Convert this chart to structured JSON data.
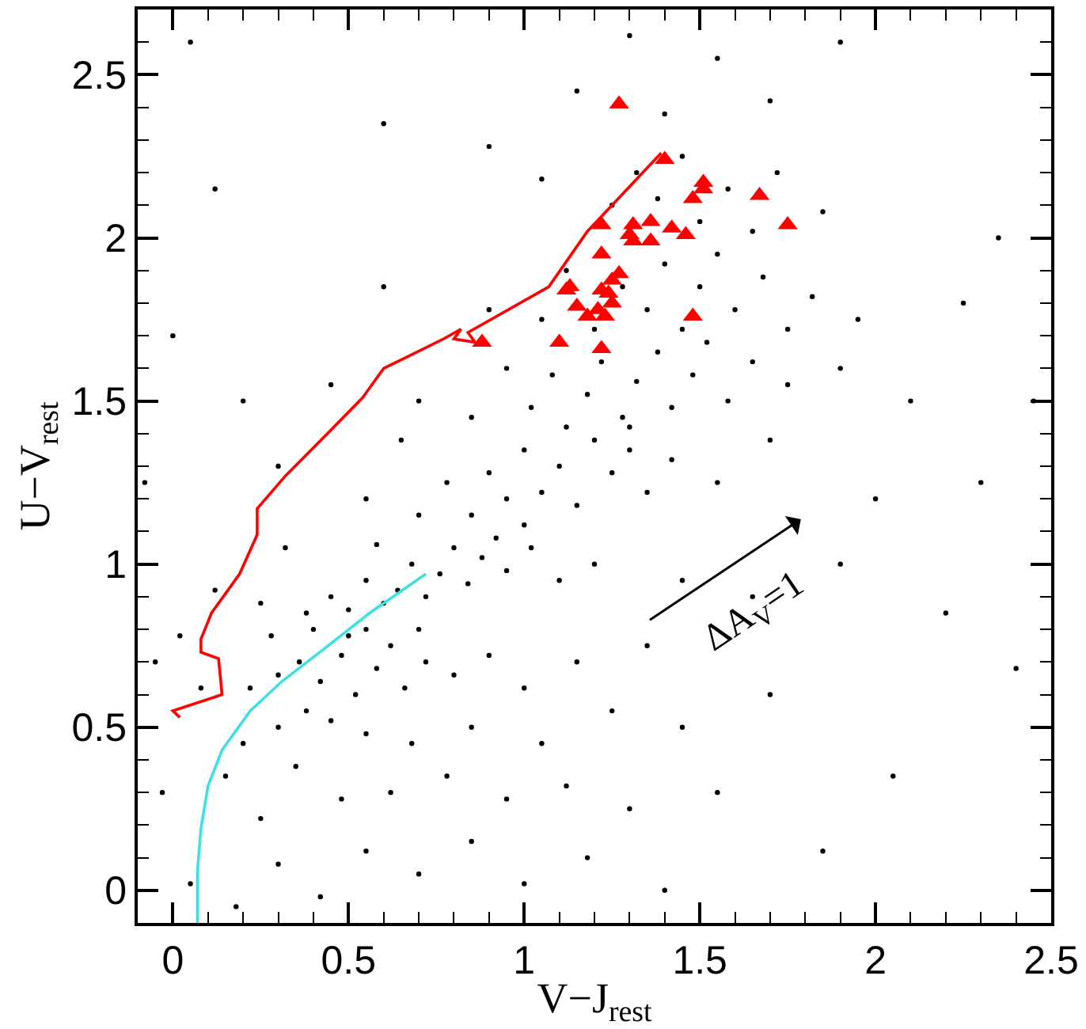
{
  "chart_data": {
    "type": "scatter",
    "xlabel": "V−J$_{rest}$",
    "ylabel": "U−V$_{rest}$",
    "annotations": [
      "ΔA$_{V}$=1"
    ],
    "xlim": [
      -0.1,
      2.5
    ],
    "ylim": [
      -0.1,
      2.7
    ],
    "xticks": [
      0,
      {
        "value": 0.1,
        "label": null
      },
      {
        "value": 0.2,
        "label": null
      },
      {
        "value": 0.3,
        "label": null
      },
      {
        "value": 0.4,
        "label": null
      },
      0.5,
      {
        "value": 0.6,
        "label": null
      },
      {
        "value": 0.7,
        "label": null
      },
      {
        "value": 0.8,
        "label": null
      },
      {
        "value": 0.9,
        "label": null
      },
      1,
      {
        "value": 1.1,
        "label": null
      },
      {
        "value": 1.2,
        "label": null
      },
      {
        "value": 1.3,
        "label": null
      },
      {
        "value": 1.4,
        "label": null
      },
      1.5,
      {
        "value": 1.6,
        "label": null
      },
      {
        "value": 1.7,
        "label": null
      },
      {
        "value": 1.8,
        "label": null
      },
      {
        "value": 1.9,
        "label": null
      },
      2,
      {
        "value": 2.1,
        "label": null
      },
      {
        "value": 2.2,
        "label": null
      },
      {
        "value": 2.3,
        "label": null
      },
      {
        "value": 2.4,
        "label": null
      },
      2.5
    ],
    "yticks": [
      0,
      {
        "value": 0.1,
        "label": null
      },
      {
        "value": 0.2,
        "label": null
      },
      {
        "value": 0.3,
        "label": null
      },
      {
        "value": 0.4,
        "label": null
      },
      0.5,
      {
        "value": 0.6,
        "label": null
      },
      {
        "value": 0.7,
        "label": null
      },
      {
        "value": 0.8,
        "label": null
      },
      {
        "value": 0.9,
        "label": null
      },
      1,
      {
        "value": 1.1,
        "label": null
      },
      {
        "value": 1.2,
        "label": null
      },
      {
        "value": 1.3,
        "label": null
      },
      {
        "value": 1.4,
        "label": null
      },
      1.5,
      {
        "value": 1.6,
        "label": null
      },
      {
        "value": 1.7,
        "label": null
      },
      {
        "value": 1.8,
        "label": null
      },
      {
        "value": 1.9,
        "label": null
      },
      2,
      {
        "value": 2.1,
        "label": null
      },
      {
        "value": 2.2,
        "label": null
      },
      {
        "value": 2.3,
        "label": null
      },
      {
        "value": 2.4,
        "label": null
      },
      2.5,
      {
        "value": 2.6,
        "label": null
      }
    ],
    "grid": false,
    "series": [
      {
        "color": "#000000",
        "marker": "circle",
        "x": [
          0.05,
          0.18,
          0.3,
          0.42,
          0.55,
          0.7,
          0.85,
          1.0,
          1.18,
          1.4,
          0.25,
          0.48,
          0.62,
          0.78,
          0.95,
          1.12,
          1.3,
          0.15,
          0.35,
          1.55,
          1.85,
          2.05,
          0.08,
          0.02,
          0.2,
          0.3,
          0.38,
          0.45,
          0.55,
          0.68,
          0.85,
          1.05,
          1.25,
          1.45,
          1.7,
          0.22,
          0.3,
          0.36,
          0.42,
          0.48,
          0.52,
          0.58,
          0.62,
          0.66,
          0.72,
          0.8,
          0.9,
          1.0,
          1.15,
          1.35,
          0.28,
          0.4,
          0.5,
          0.55,
          0.7,
          0.12,
          0.25,
          0.38,
          0.45,
          0.5,
          0.55,
          0.6,
          0.64,
          0.68,
          0.72,
          0.76,
          0.8,
          0.84,
          0.88,
          0.92,
          0.95,
          1.02,
          1.1,
          1.2,
          1.45,
          1.65,
          1.9,
          0.32,
          0.58,
          2.2,
          0.3,
          0.55,
          0.7,
          0.78,
          0.85,
          0.9,
          0.95,
          1.0,
          1.05,
          1.1,
          1.15,
          1.2,
          1.25,
          1.3,
          1.35,
          1.42,
          1.55,
          1.7,
          2.0,
          2.3,
          0.65,
          1.0,
          0.45,
          0.7,
          0.85,
          0.95,
          1.02,
          1.08,
          1.12,
          1.18,
          1.22,
          1.28,
          1.32,
          1.38,
          1.42,
          1.48,
          1.52,
          1.58,
          1.65,
          1.75,
          1.9,
          2.1,
          1.3,
          0.6,
          0.9,
          1.05,
          1.12,
          1.2,
          1.28,
          1.35,
          1.4,
          1.45,
          1.5,
          1.55,
          1.6,
          1.68,
          1.75,
          1.82,
          1.95,
          2.25,
          1.25,
          1.32,
          1.38,
          1.45,
          1.5,
          1.58,
          1.65,
          1.72,
          1.85,
          1.05,
          0.9,
          1.15,
          1.4,
          1.55,
          1.7,
          1.9,
          0.6,
          1.3,
          -0.05,
          -0.08,
          0.0,
          0.05,
          0.12,
          0.2,
          -0.03,
          2.4,
          2.45,
          2.35
        ],
        "values": [
          0.02,
          -0.05,
          0.08,
          -0.02,
          0.12,
          0.05,
          0.15,
          0.02,
          0.1,
          0.0,
          0.22,
          0.28,
          0.3,
          0.35,
          0.28,
          0.32,
          0.25,
          0.35,
          0.38,
          0.3,
          0.12,
          0.35,
          0.62,
          0.78,
          0.45,
          0.5,
          0.55,
          0.52,
          0.48,
          0.45,
          0.5,
          0.45,
          0.55,
          0.5,
          0.6,
          0.62,
          0.66,
          0.7,
          0.64,
          0.72,
          0.6,
          0.68,
          0.75,
          0.62,
          0.7,
          0.66,
          0.72,
          0.62,
          0.7,
          0.75,
          0.78,
          0.8,
          0.78,
          0.8,
          0.8,
          0.92,
          0.88,
          0.85,
          0.9,
          0.86,
          0.95,
          0.88,
          0.92,
          1.0,
          0.9,
          0.97,
          1.05,
          0.94,
          1.02,
          1.08,
          0.98,
          1.05,
          0.95,
          1.0,
          0.95,
          0.9,
          1.0,
          1.05,
          1.06,
          0.85,
          1.3,
          1.2,
          1.15,
          1.25,
          1.15,
          1.28,
          1.2,
          1.35,
          1.22,
          1.3,
          1.18,
          1.38,
          1.28,
          1.35,
          1.22,
          1.32,
          1.25,
          1.38,
          1.2,
          1.25,
          1.38,
          1.12,
          1.55,
          1.5,
          1.45,
          1.6,
          1.48,
          1.58,
          1.42,
          1.52,
          1.62,
          1.45,
          1.56,
          1.65,
          1.48,
          1.58,
          1.68,
          1.5,
          1.62,
          1.55,
          1.6,
          1.5,
          1.42,
          1.85,
          1.78,
          1.75,
          1.9,
          1.72,
          1.85,
          1.78,
          1.92,
          1.72,
          1.85,
          1.95,
          1.78,
          1.88,
          1.72,
          1.82,
          1.75,
          1.8,
          2.1,
          2.2,
          2.12,
          2.25,
          2.05,
          2.15,
          2.02,
          2.2,
          2.08,
          2.18,
          2.28,
          2.45,
          2.38,
          2.55,
          2.42,
          2.6,
          2.35,
          2.62,
          0.7,
          1.25,
          1.7,
          2.6,
          2.15,
          1.5,
          0.3,
          0.68,
          1.5,
          2.0
        ]
      },
      {
        "color": "#ff0000",
        "marker": "triangle",
        "x": [
          1.27,
          1.4,
          1.51,
          1.51,
          1.48,
          1.67,
          1.75,
          1.22,
          1.31,
          1.36,
          1.42,
          1.46,
          1.3,
          1.31,
          1.36,
          1.22,
          1.27,
          1.25,
          1.13,
          1.12,
          1.22,
          1.24,
          1.25,
          1.15,
          1.21,
          1.18,
          1.23,
          1.48,
          1.1,
          1.22,
          0.88
        ],
        "values": [
          2.41,
          2.24,
          2.17,
          2.15,
          2.12,
          2.13,
          2.04,
          2.04,
          2.04,
          2.05,
          2.03,
          2.01,
          2.01,
          1.99,
          1.99,
          1.95,
          1.89,
          1.87,
          1.85,
          1.84,
          1.84,
          1.83,
          1.8,
          1.79,
          1.78,
          1.76,
          1.76,
          1.76,
          1.68,
          1.66,
          1.68
        ]
      },
      {
        "type": "line",
        "color": "#ff0000",
        "x": [
          0.02,
          0.0,
          0.14,
          0.13,
          0.08,
          0.08,
          0.11,
          0.19,
          0.24,
          0.24,
          0.32,
          0.44,
          0.54,
          0.6,
          0.77,
          0.82,
          0.8,
          0.86,
          0.84,
          1.07,
          1.18,
          1.39
        ],
        "values": [
          0.53,
          0.55,
          0.6,
          0.71,
          0.73,
          0.77,
          0.85,
          0.97,
          1.09,
          1.17,
          1.27,
          1.4,
          1.51,
          1.6,
          1.69,
          1.72,
          1.69,
          1.68,
          1.71,
          1.85,
          2.02,
          2.26
        ]
      },
      {
        "type": "line",
        "color": "#40e0e0",
        "x": [
          0.07,
          0.07,
          0.08,
          0.1,
          0.14,
          0.22,
          0.31,
          0.43,
          0.56,
          0.72
        ],
        "values": [
          -0.1,
          0.06,
          0.19,
          0.32,
          0.43,
          0.55,
          0.64,
          0.74,
          0.85,
          0.97
        ]
      }
    ]
  }
}
